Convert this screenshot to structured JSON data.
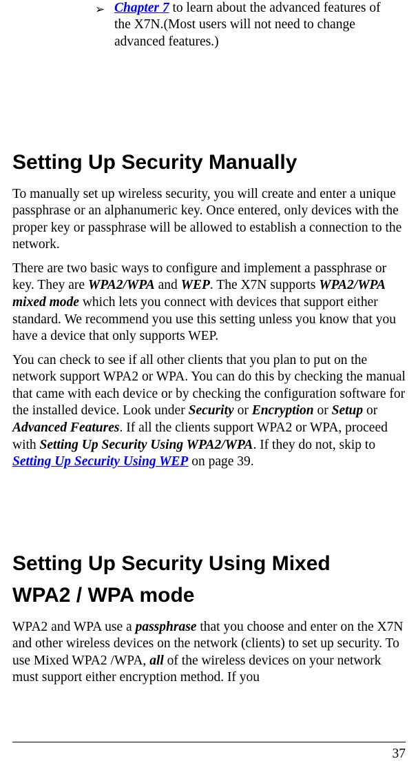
{
  "bullet": {
    "symbol": "➢",
    "link_text": "Chapter 7",
    "tail_text": " to learn about the advanced features of the X7N.(Most users will not need to change advanced features.)"
  },
  "section1": {
    "heading": "Setting Up Security Manually",
    "p1": "To manually set up wireless security, you will create and enter a unique passphrase or an alphanumeric key. Once entered, only devices with the proper key or passphrase will be allowed to establish a connection to the network.",
    "p2_a": "There are two basic ways to configure and implement a passphrase or key. They are ",
    "p2_b1": "WPA2/WPA",
    "p2_c": " and ",
    "p2_b2": "WEP",
    "p2_d": ".  The X7N supports ",
    "p2_b3": "WPA2/WPA mixed mode",
    "p2_e": " which lets you connect with devices that support either standard.  We recommend you use this setting unless you know that you have a device that only supports WEP.",
    "p3_a": "You can check to see if all other clients that you plan to put on the network support WPA2 or WPA. You can do this by checking the manual that came with each device or by checking the configuration software for the installed device. Look under ",
    "p3_b1": "Security",
    "p3_c1": " or ",
    "p3_b2": "Encryption",
    "p3_c2": " or ",
    "p3_b3": "Setup",
    "p3_c3": " or ",
    "p3_b4": "Advanced Features",
    "p3_d": ". If all the clients support WPA2 or WPA, proceed with ",
    "p3_b5": "Setting Up Security Using WPA2/WPA",
    "p3_e": ". If they do not, skip to ",
    "p3_link": "Setting Up Security Using WEP",
    "p3_f": " on page 39."
  },
  "section2": {
    "heading_l1": "Setting Up Security Using Mixed",
    "heading_l2": "WPA2 / WPA mode",
    "p1_a": "WPA2 and WPA use a ",
    "p1_b1": "passphrase",
    "p1_c": " that you choose and enter on the X7N and other wireless devices on the network (clients) to set up security. To use Mixed WPA2 /WPA, ",
    "p1_b2": "all",
    "p1_d": " of the wireless devices on your network must support either encryption method. If you"
  },
  "page_number": "37"
}
